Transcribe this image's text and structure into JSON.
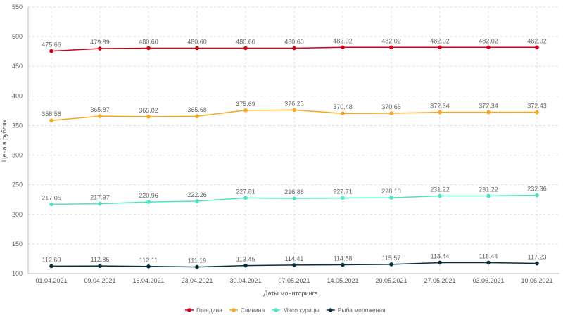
{
  "chart_data": {
    "type": "line",
    "title": "",
    "xlabel": "Даты мониторинга",
    "ylabel": "Цена в рублях",
    "ylim": [
      100,
      550
    ],
    "yticks": [
      100,
      150,
      200,
      250,
      300,
      350,
      400,
      450,
      500,
      550
    ],
    "grid": true,
    "legend_position": "bottom",
    "categories": [
      "01.04.2021",
      "09.04.2021",
      "16.04.2021",
      "23.04.2021",
      "30.04.2021",
      "07.05.2021",
      "14.05.2021",
      "20.05.2021",
      "27.05.2021",
      "03.06.2021",
      "10.06.2021"
    ],
    "series": [
      {
        "name": "Говядина",
        "color": "#d0021b",
        "values": [
          475.66,
          479.89,
          480.6,
          480.6,
          480.6,
          480.6,
          482.02,
          482.02,
          482.02,
          482.02,
          482.02
        ]
      },
      {
        "name": "Свинина",
        "color": "#f5a623",
        "values": [
          358.56,
          365.87,
          365.02,
          365.68,
          375.69,
          376.25,
          370.48,
          370.66,
          372.34,
          372.34,
          372.43
        ]
      },
      {
        "name": "Мясо курицы",
        "color": "#50e3c2",
        "values": [
          217.05,
          217.97,
          220.96,
          222.26,
          227.81,
          226.88,
          227.71,
          228.1,
          231.22,
          231.22,
          232.36
        ]
      },
      {
        "name": "Рыба мороженая",
        "color": "#0b2e3f",
        "values": [
          112.6,
          112.86,
          112.11,
          111.19,
          113.45,
          114.41,
          114.88,
          115.57,
          118.44,
          118.44,
          117.23
        ]
      }
    ]
  }
}
